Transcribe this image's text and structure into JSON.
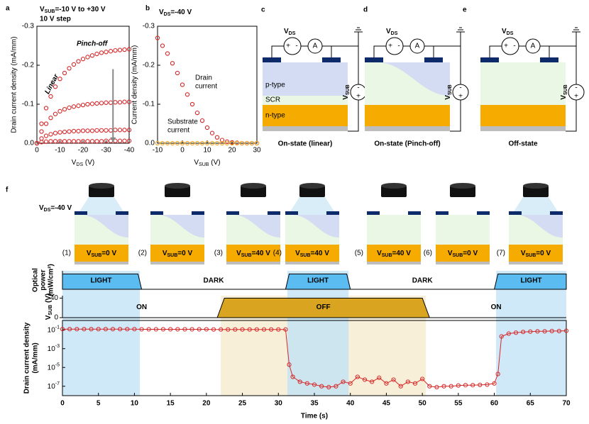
{
  "panel_labels": [
    "a",
    "b",
    "c",
    "d",
    "e",
    "f"
  ],
  "chart_data": [
    {
      "type": "scatter",
      "title": [
        "V",
        "SUB",
        "=-10 V to +30 V"
      ],
      "subtitle": "10 V step",
      "annotations": [
        "Pinch-off",
        "Linear"
      ],
      "xlabel": [
        "V",
        "DS",
        " (V)"
      ],
      "ylabel": "Drain current density (mA/mm)",
      "x": [
        0,
        -2,
        -4,
        -6,
        -8,
        -10,
        -12,
        -14,
        -16,
        -18,
        -20,
        -22,
        -24,
        -26,
        -28,
        -30,
        -32,
        -34,
        -36,
        -38,
        -40
      ],
      "series": [
        {
          "color": "#d62728",
          "values": [
            0,
            -0.05,
            -0.09,
            -0.12,
            -0.145,
            -0.165,
            -0.18,
            -0.192,
            -0.202,
            -0.21,
            -0.216,
            -0.221,
            -0.225,
            -0.229,
            -0.232,
            -0.234,
            -0.236,
            -0.238,
            -0.239,
            -0.24,
            -0.241
          ]
        },
        {
          "color": "#d62728",
          "values": [
            0,
            -0.03,
            -0.05,
            -0.065,
            -0.075,
            -0.082,
            -0.087,
            -0.091,
            -0.094,
            -0.096,
            -0.098,
            -0.1,
            -0.101,
            -0.102,
            -0.103,
            -0.104,
            -0.104,
            -0.105,
            -0.105,
            -0.106,
            -0.106
          ]
        },
        {
          "color": "#d62728",
          "values": [
            0,
            -0.012,
            -0.019,
            -0.023,
            -0.026,
            -0.028,
            -0.029,
            -0.03,
            -0.031,
            -0.031,
            -0.032,
            -0.032,
            -0.032,
            -0.033,
            -0.033,
            -0.033,
            -0.033,
            -0.034,
            -0.034,
            -0.034,
            -0.034
          ]
        },
        {
          "color": "#d62728",
          "values": [
            0,
            -0.003,
            -0.004,
            -0.005,
            -0.005,
            -0.005,
            -0.005,
            -0.005,
            -0.005,
            -0.005,
            -0.005,
            -0.005,
            -0.005,
            -0.005,
            -0.005,
            -0.006,
            -0.006,
            -0.006,
            -0.006,
            -0.006,
            -0.006
          ]
        }
      ],
      "xlim": [
        0,
        -40
      ],
      "xticks": [
        0,
        -10,
        -20,
        -30,
        -40
      ],
      "ylim": [
        0,
        -0.3
      ],
      "yticks": [
        {
          "value": 0,
          "label": "0.0"
        },
        -0.1,
        -0.2,
        -0.3
      ]
    },
    {
      "type": "scatter",
      "title": [
        "V",
        "DS",
        "=-40 V"
      ],
      "xlabel": [
        "V",
        "SUB",
        " (V)"
      ],
      "ylabel": "Current density (mA/mm)",
      "x": [
        -10,
        -8,
        -6,
        -4,
        -2,
        0,
        2,
        4,
        6,
        8,
        10,
        12,
        14,
        16,
        18,
        20,
        22,
        24,
        26,
        28,
        30
      ],
      "series": [
        {
          "name": [
            "Drain",
            "current"
          ],
          "color": "#d62728",
          "values": [
            -0.27,
            -0.25,
            -0.23,
            -0.205,
            -0.18,
            -0.15,
            -0.125,
            -0.1,
            -0.078,
            -0.058,
            -0.04,
            -0.026,
            -0.015,
            -0.008,
            -0.004,
            -0.002,
            -0.001,
            0,
            0,
            0,
            0
          ]
        },
        {
          "name": [
            "Substrate",
            "current"
          ],
          "color": "#f5a623",
          "values": [
            0,
            0,
            0,
            0,
            0,
            0,
            0,
            0,
            0,
            0,
            0,
            0,
            0,
            0,
            0,
            0,
            0,
            0,
            0,
            0,
            0
          ]
        }
      ],
      "xlim": [
        -10,
        30
      ],
      "xticks": [
        -10,
        0,
        10,
        20,
        30
      ],
      "ylim": [
        0,
        -0.3
      ],
      "yticks": [
        {
          "value": 0,
          "label": "0.0"
        },
        -0.1,
        -0.2,
        -0.3
      ]
    },
    {
      "type": "area",
      "ylabel": [
        "Optical",
        "power",
        "(mW/cm²)"
      ],
      "segment_labels": [
        "LIGHT",
        "DARK",
        "LIGHT",
        "DARK",
        "LIGHT"
      ],
      "x": [
        0,
        10.5,
        11,
        31,
        31.5,
        39.5,
        40,
        60,
        60.5,
        70
      ],
      "values": [
        1,
        1,
        0,
        0,
        1,
        1,
        0,
        0,
        1,
        1
      ],
      "color": "#5bbcf2",
      "xlim": [
        0,
        70
      ],
      "ylim": [
        0,
        1.2
      ]
    },
    {
      "type": "area",
      "ylabel": [
        "V",
        "SUB",
        " (V)"
      ],
      "segment_labels": [
        "ON",
        "OFF",
        "ON"
      ],
      "x": [
        0,
        21.5,
        22.5,
        50,
        51,
        70
      ],
      "values": [
        0,
        0,
        40,
        40,
        0,
        0
      ],
      "color": "#d9a521",
      "xlim": [
        0,
        70
      ],
      "ylim": [
        0,
        45
      ],
      "yticks": [
        0,
        40
      ]
    },
    {
      "type": "line",
      "log": true,
      "ylabel": [
        "Drain current density",
        "(mA/mm)"
      ],
      "xlabel": "Time (s)",
      "color": "#d62728",
      "x": [
        0,
        1,
        2,
        3,
        4,
        5,
        6,
        7,
        8,
        9,
        10,
        11,
        12,
        13,
        14,
        15,
        16,
        17,
        18,
        19,
        20,
        21,
        22,
        23,
        24,
        25,
        26,
        27,
        28,
        29,
        30,
        31,
        31.5,
        32,
        33,
        34,
        35,
        36,
        37,
        38,
        39,
        40,
        41,
        42,
        43,
        44,
        45,
        46,
        47,
        48,
        49,
        50,
        51,
        52,
        53,
        54,
        55,
        56,
        57,
        58,
        59,
        60,
        60.5,
        61,
        62,
        63,
        64,
        65,
        66,
        67,
        68,
        69,
        70
      ],
      "values": [
        0.12,
        0.12,
        0.12,
        0.12,
        0.12,
        0.12,
        0.12,
        0.12,
        0.12,
        0.12,
        0.12,
        0.115,
        0.115,
        0.115,
        0.115,
        0.115,
        0.115,
        0.115,
        0.115,
        0.115,
        0.115,
        0.11,
        0.11,
        0.11,
        0.11,
        0.11,
        0.11,
        0.11,
        0.11,
        0.11,
        0.11,
        0.11,
        2e-05,
        1e-06,
        3e-07,
        2e-07,
        1.5e-07,
        1e-07,
        8e-08,
        1e-07,
        3e-07,
        2e-07,
        1e-06,
        5e-07,
        3e-07,
        8e-07,
        2e-07,
        5e-07,
        1e-07,
        3e-07,
        2e-07,
        6e-07,
        1e-07,
        8e-08,
        1e-07,
        1e-07,
        1.2e-07,
        1.3e-07,
        1.3e-07,
        1.4e-07,
        1.5e-07,
        2e-07,
        2e-06,
        0.02,
        0.04,
        0.05,
        0.06,
        0.065,
        0.07,
        0.07,
        0.075,
        0.075,
        0.08
      ],
      "xlim": [
        0,
        70
      ],
      "xticks": [
        0,
        5,
        10,
        15,
        20,
        25,
        30,
        35,
        40,
        45,
        50,
        55,
        60,
        65,
        70
      ],
      "ylim": [
        1e-08,
        1
      ],
      "yticks": [
        {
          "value": 1e-07,
          "label": [
            "10",
            "-7"
          ]
        },
        {
          "value": 1e-05,
          "label": [
            "10",
            "-5"
          ]
        },
        {
          "value": 0.001,
          "label": [
            "10",
            "-3"
          ]
        },
        {
          "value": 0.1,
          "label": [
            "10",
            "-1"
          ]
        }
      ]
    }
  ],
  "devices": {
    "circuit": {
      "vds": [
        "V",
        "DS"
      ],
      "plus": "+",
      "minus": "-",
      "meter": "A",
      "vsub": [
        "V",
        "SUB"
      ]
    },
    "layers": [
      "p-type",
      "SCR",
      "n-type"
    ],
    "captions": [
      "On-state (linear)",
      "On-state (Pinch-off)",
      "Off-state"
    ]
  },
  "states": {
    "vds": [
      "V",
      "DS",
      "=-40 V"
    ],
    "items": [
      {
        "index": "(1)",
        "label": [
          "V",
          "SUB",
          "=0 V"
        ]
      },
      {
        "index": "(2)",
        "label": [
          "V",
          "SUB",
          "=0 V"
        ]
      },
      {
        "index": "(3)",
        "label": [
          "V",
          "SUB",
          "=40 V"
        ]
      },
      {
        "index": "(4)",
        "label": [
          "V",
          "SUB",
          "=40 V"
        ]
      },
      {
        "index": "(5)",
        "label": [
          "V",
          "SUB",
          "=40 V"
        ]
      },
      {
        "index": "(6)",
        "label": [
          "V",
          "SUB",
          "=0 V"
        ]
      },
      {
        "index": "(7)",
        "label": [
          "V",
          "SUB",
          "=0 V"
        ]
      }
    ]
  }
}
